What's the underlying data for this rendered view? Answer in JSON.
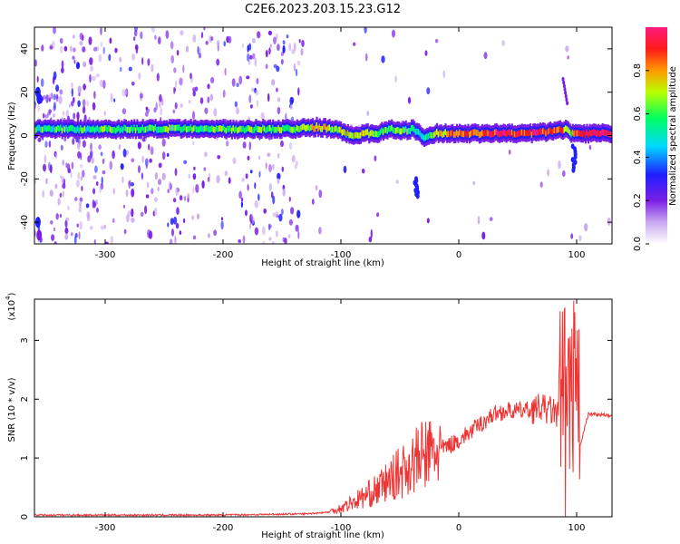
{
  "title": "C2E6.2023.203.15.23.G12",
  "chart_data": [
    {
      "type": "heatmap",
      "xlabel": "Height of straight line (km)",
      "ylabel": "Frequency (Hz)",
      "xlim": [
        -360,
        130
      ],
      "ylim": [
        -50,
        50
      ],
      "x_ticks": [
        -300,
        -200,
        -100,
        0,
        100
      ],
      "y_ticks": [
        -40,
        -20,
        0,
        20,
        40
      ],
      "colorbar": {
        "label": "Normalized spectral amplitude",
        "range": [
          0.0,
          1.0
        ],
        "ticks": [
          "0.0",
          "0.2",
          "0.4",
          "0.6",
          "0.8"
        ],
        "colors": [
          "#ffffff",
          "#c9a8f0",
          "#7a1fe6",
          "#1f1fff",
          "#00d8ff",
          "#00ff60",
          "#b8ff00",
          "#ff9900",
          "#ff1a1a",
          "#ff1a80"
        ]
      },
      "ridge": {
        "description_points_x": [
          -360,
          -300,
          -200,
          -140,
          -120,
          -100,
          -90,
          -80,
          -70,
          -60,
          -50,
          -40,
          -35,
          -30,
          -20,
          0,
          20,
          40,
          60,
          80,
          90,
          95,
          100,
          130
        ],
        "frequency_hz": [
          3,
          3,
          3,
          3,
          4,
          2,
          0,
          1,
          1,
          3,
          2,
          3,
          1,
          -1,
          1,
          1,
          1,
          1,
          1,
          2,
          3,
          1,
          1,
          1
        ],
        "peak_amplitude": [
          0.55,
          0.55,
          0.6,
          0.6,
          0.7,
          0.65,
          0.7,
          0.7,
          0.6,
          0.65,
          0.6,
          0.55,
          0.5,
          0.5,
          0.7,
          0.85,
          0.85,
          0.9,
          0.9,
          0.9,
          0.75,
          0.6,
          0.9,
          0.95
        ]
      }
    },
    {
      "type": "line",
      "xlabel": "Height of straight line (km)",
      "ylabel": "SNR (10 * v/v)",
      "y_multiplier": "(x10",
      "y_multiplier_exp": "4",
      "xlim": [
        -360,
        130
      ],
      "ylim": [
        0,
        3.7
      ],
      "x_ticks": [
        -300,
        -200,
        -100,
        0,
        100
      ],
      "y_ticks": [
        0,
        1,
        2,
        3
      ],
      "color": "#ee3333",
      "envelope": {
        "x": [
          -360,
          -200,
          -130,
          -110,
          -100,
          -90,
          -80,
          -70,
          -60,
          -50,
          -40,
          -30,
          -20,
          -10,
          0,
          10,
          20,
          30,
          40,
          50,
          60,
          70,
          80,
          85,
          90,
          95,
          100,
          110,
          130
        ],
        "y": [
          0.03,
          0.03,
          0.05,
          0.08,
          0.15,
          0.25,
          0.35,
          0.45,
          0.6,
          0.75,
          0.9,
          1.05,
          1.1,
          1.2,
          1.3,
          1.45,
          1.6,
          1.75,
          1.8,
          1.8,
          1.82,
          1.85,
          1.8,
          1.7,
          1.8,
          1.8,
          1.0,
          1.75,
          1.72
        ]
      }
    }
  ]
}
